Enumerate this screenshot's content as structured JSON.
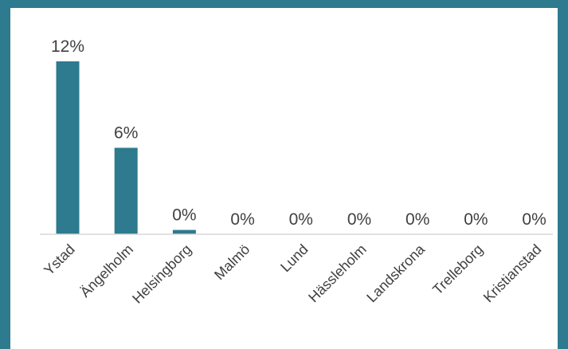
{
  "chart_data": {
    "type": "bar",
    "categories": [
      "Ystad",
      "Ängelholm",
      "Helsingborg",
      "Malmö",
      "Lund",
      "Hässleholm",
      "Landskrona",
      "Trelleborg",
      "Kristianstad"
    ],
    "values": [
      12,
      6,
      0.3,
      0,
      0,
      0,
      0,
      0,
      0
    ],
    "data_labels": [
      "12%",
      "6%",
      "0%",
      "0%",
      "0%",
      "0%",
      "0%",
      "0%",
      "0%"
    ],
    "title": "",
    "xlabel": "",
    "ylabel": "",
    "ylim": [
      0,
      12
    ],
    "grid": false,
    "legend": "none",
    "colors": {
      "bar": "#2e7a8e",
      "frame": "#2e7a8e",
      "axis": "#d9d9d9",
      "text": "#404040",
      "background": "#ffffff"
    }
  }
}
